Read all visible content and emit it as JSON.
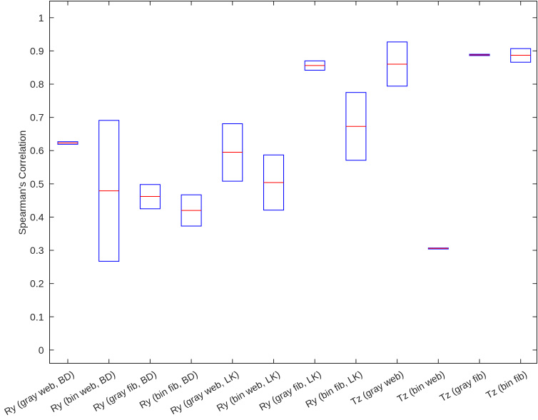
{
  "chart_data": {
    "type": "box",
    "ylabel": "Spearman's Correlation",
    "xlabel": "",
    "title": "",
    "ylim": [
      -0.04,
      1.05
    ],
    "yticks": [
      0,
      0.1,
      0.2,
      0.3,
      0.4,
      0.5,
      0.6,
      0.7,
      0.8,
      0.9,
      1
    ],
    "grid": false,
    "categories": [
      "Ry (gray web, BD)",
      "Ry (bin web, BD)",
      "Ry (gray fib, BD)",
      "Ry (bin fib, BD)",
      "Ry (gray web, LK)",
      "Ry (bin web, LK)",
      "Ry (gray fib, LK)",
      "Ry (bin fib, LK)",
      "Tz (gray web)",
      "Tz (bin web)",
      "Tz (gray fib)",
      "Tz (bin fib)"
    ],
    "boxes": [
      {
        "q1": 0.619,
        "median": 0.623,
        "q3": 0.627
      },
      {
        "q1": 0.267,
        "median": 0.479,
        "q3": 0.691
      },
      {
        "q1": 0.425,
        "median": 0.462,
        "q3": 0.498
      },
      {
        "q1": 0.373,
        "median": 0.42,
        "q3": 0.467
      },
      {
        "q1": 0.508,
        "median": 0.595,
        "q3": 0.681
      },
      {
        "q1": 0.421,
        "median": 0.504,
        "q3": 0.587
      },
      {
        "q1": 0.842,
        "median": 0.856,
        "q3": 0.87
      },
      {
        "q1": 0.571,
        "median": 0.673,
        "q3": 0.775
      },
      {
        "q1": 0.794,
        "median": 0.86,
        "q3": 0.927
      },
      {
        "q1": 0.304,
        "median": 0.306,
        "q3": 0.307
      },
      {
        "q1": 0.886,
        "median": 0.888,
        "q3": 0.89
      },
      {
        "q1": 0.866,
        "median": 0.887,
        "q3": 0.907
      }
    ],
    "colors": {
      "box": "#0000ff",
      "median": "#ff0000",
      "axis": "#262626"
    }
  }
}
